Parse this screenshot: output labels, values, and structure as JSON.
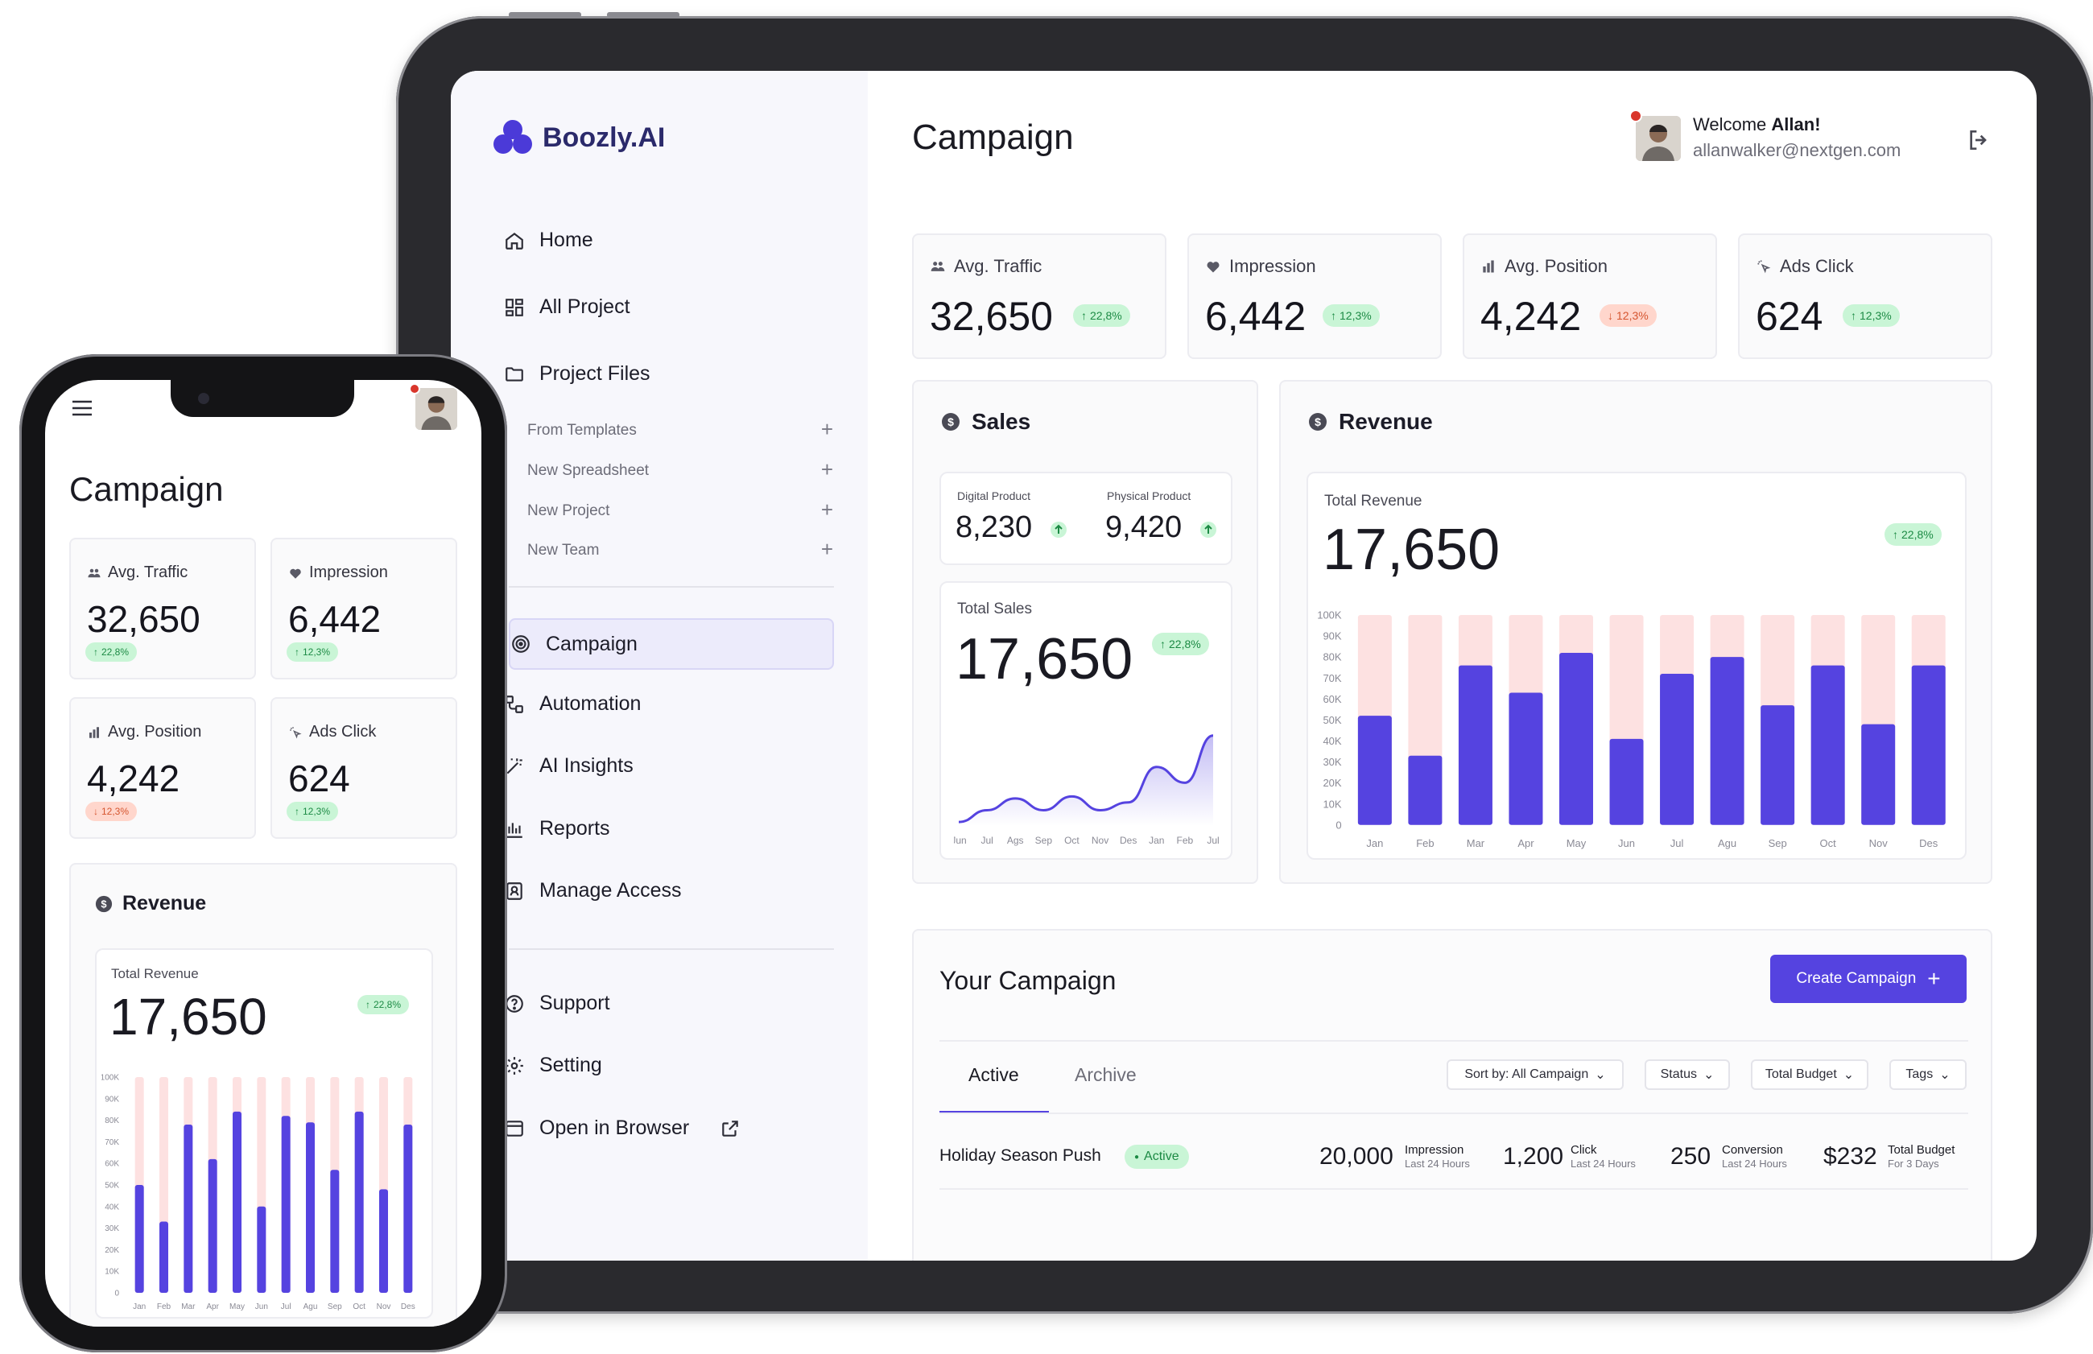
{
  "app": {
    "brand": "Boozly.AI",
    "page_title": "Campaign",
    "accent": "#5543e0",
    "up_color": "#1c8a44",
    "down_color": "#d5552f"
  },
  "user": {
    "welcome_prefix": "Welcome ",
    "name": "Allan!",
    "email": "allanwalker@nextgen.com"
  },
  "sidebar": {
    "nav": [
      {
        "label": "Home",
        "icon": "home-icon"
      },
      {
        "label": "All Project",
        "icon": "grid-icon"
      },
      {
        "label": "Project Files",
        "icon": "folder-icon"
      }
    ],
    "sub_items": [
      "From Templates",
      "New Spreadsheet",
      "New Project",
      "New Team"
    ],
    "nav2": [
      {
        "label": "Campaign",
        "icon": "campaign-icon"
      },
      {
        "label": "Automation",
        "icon": "automation-icon"
      },
      {
        "label": "AI Insights",
        "icon": "magic-wand-icon"
      },
      {
        "label": "Reports",
        "icon": "bar-chart-icon"
      },
      {
        "label": "Manage Access",
        "icon": "user-badge-icon"
      }
    ],
    "nav3": [
      {
        "label": "Support",
        "icon": "help-icon"
      },
      {
        "label": "Setting",
        "icon": "gear-icon"
      },
      {
        "label": "Open in Browser",
        "icon": "browser-icon"
      }
    ]
  },
  "kpis": [
    {
      "label": "Avg. Traffic",
      "value": "32,650",
      "change": "22,8%",
      "trend": "up"
    },
    {
      "label": "Impression",
      "value": "6,442",
      "change": "12,3%",
      "trend": "up"
    },
    {
      "label": "Avg. Position",
      "value": "4,242",
      "change": "12,3%",
      "trend": "down"
    },
    {
      "label": "Ads Click",
      "value": "624",
      "change": "12,3%",
      "trend": "up"
    }
  ],
  "sales": {
    "title": "Sales",
    "digital_label": "Digital Product",
    "digital_value": "8,230",
    "physical_label": "Physical Product",
    "physical_value": "9,420",
    "total_label": "Total Sales",
    "total_value": "17,650",
    "change": "22,8%"
  },
  "revenue": {
    "title": "Revenue",
    "total_label": "Total Revenue",
    "total_value": "17,650",
    "change": "22,8%"
  },
  "chart_data": [
    {
      "type": "line",
      "title": "Total Sales",
      "categories": [
        "Jun",
        "Jul",
        "Ags",
        "Sep",
        "Oct",
        "Nov",
        "Des",
        "Jan",
        "Feb",
        "Jul"
      ],
      "values": [
        2,
        8,
        14,
        8,
        15,
        8,
        12,
        30,
        22,
        46
      ],
      "ylim": [
        0,
        50
      ]
    },
    {
      "type": "bar",
      "title": "Total Revenue",
      "categories": [
        "Jan",
        "Feb",
        "Mar",
        "Apr",
        "May",
        "Jun",
        "Jul",
        "Agu",
        "Sep",
        "Oct",
        "Nov",
        "Des"
      ],
      "y_ticks": [
        "0",
        "10K",
        "20K",
        "30K",
        "40K",
        "50K",
        "60K",
        "70K",
        "80K",
        "90K",
        "100K"
      ],
      "ylim": [
        0,
        100000
      ],
      "series": [
        {
          "values": [
            52000,
            33000,
            76000,
            63000,
            82000,
            41000,
            72000,
            80000,
            57000,
            76000,
            48000,
            76000
          ]
        },
        {
          "values": [
            100000,
            100000,
            100000,
            100000,
            100000,
            100000,
            100000,
            100000,
            100000,
            100000,
            100000,
            100000
          ]
        }
      ],
      "colors": [
        "#5543e0",
        "#fde1e1"
      ]
    },
    {
      "type": "bar",
      "title": "Total Revenue",
      "categories": [
        "Jan",
        "Feb",
        "Mar",
        "Apr",
        "May",
        "Jun",
        "Jul",
        "Agu",
        "Sep",
        "Oct",
        "Nov",
        "Des"
      ],
      "y_ticks": [
        "0",
        "10K",
        "20K",
        "30K",
        "40K",
        "50K",
        "60K",
        "70K",
        "80K",
        "90K",
        "100K"
      ],
      "ylim": [
        0,
        100000
      ],
      "series": [
        {
          "values": [
            50000,
            33000,
            78000,
            62000,
            84000,
            40000,
            82000,
            79000,
            57000,
            84000,
            48000,
            78000
          ]
        },
        {
          "values": [
            100000,
            100000,
            100000,
            100000,
            100000,
            100000,
            100000,
            100000,
            100000,
            100000,
            100000,
            100000
          ]
        }
      ],
      "colors": [
        "#5543e0",
        "#fde1e1"
      ]
    }
  ],
  "your_campaign": {
    "title": "Your Campaign",
    "create_label": "Create Campaign",
    "tabs": [
      "Active",
      "Archive"
    ],
    "filters": [
      "Sort by: All Campaign",
      "Status",
      "Total Budget",
      "Tags"
    ],
    "rows": [
      {
        "name": "Holiday Season Push",
        "status": "Active",
        "impression": "20,000",
        "impression_label": "Impression",
        "impression_sub": "Last 24 Hours",
        "click": "1,200",
        "click_label": "Click",
        "click_sub": "Last 24 Hours",
        "conversion": "250",
        "conversion_label": "Conversion",
        "conversion_sub": "Last 24 Hours",
        "budget": "$232",
        "budget_label": "Total Budget",
        "budget_sub": "For 3 Days"
      }
    ]
  },
  "phone": {
    "page_title": "Campaign",
    "revenue_title": "Revenue",
    "total_label": "Total Revenue",
    "total_value": "17,650",
    "change": "22,8%"
  }
}
